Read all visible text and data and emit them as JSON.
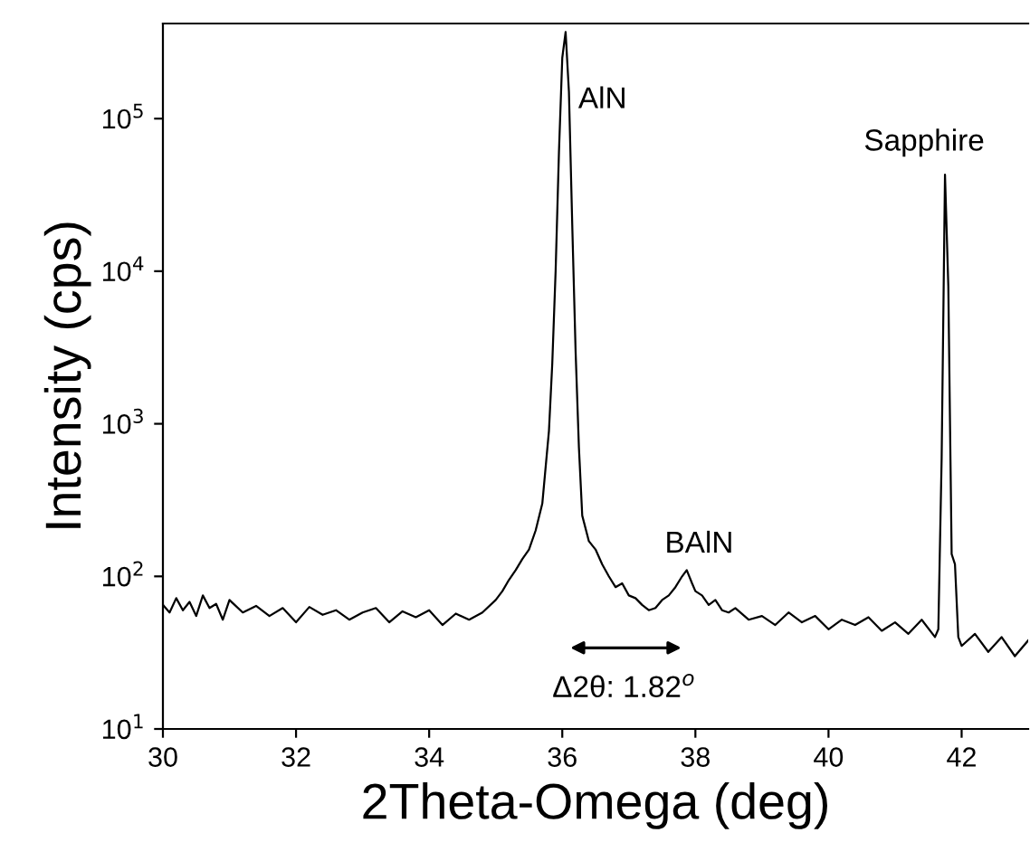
{
  "chart_data": {
    "type": "line",
    "xlabel": "2Theta-Omega (deg)",
    "ylabel": "Intensity (cps)",
    "log": "y",
    "xlim": [
      30,
      43
    ],
    "ylim": [
      10,
      420000
    ],
    "xticks": [
      30,
      32,
      34,
      36,
      38,
      40,
      42
    ],
    "yticks": [
      {
        "value": 10,
        "label": "10$^{1}$"
      },
      {
        "value": 100,
        "label": "10$^{2}$"
      },
      {
        "value": 1000,
        "label": "10$^{3}$"
      },
      {
        "value": 10000,
        "label": "10$^{4}$"
      },
      {
        "value": 100000,
        "label": "10$^{5}$"
      }
    ],
    "grid": false,
    "legend": false,
    "marker": "none",
    "line_style": "solid",
    "series": [
      {
        "color": "#000000",
        "x": [
          30.0,
          30.1,
          30.2,
          30.3,
          30.4,
          30.5,
          30.6,
          30.7,
          30.8,
          30.9,
          31.0,
          31.2,
          31.4,
          31.6,
          31.8,
          32.0,
          32.2,
          32.4,
          32.6,
          32.8,
          33.0,
          33.2,
          33.4,
          33.6,
          33.8,
          34.0,
          34.2,
          34.4,
          34.6,
          34.8,
          35.0,
          35.1,
          35.2,
          35.3,
          35.4,
          35.5,
          35.6,
          35.7,
          35.8,
          35.85,
          35.9,
          35.95,
          36.0,
          36.05,
          36.1,
          36.15,
          36.2,
          36.25,
          36.3,
          36.4,
          36.5,
          36.6,
          36.7,
          36.8,
          36.9,
          37.0,
          37.1,
          37.2,
          37.3,
          37.4,
          37.5,
          37.6,
          37.7,
          37.8,
          37.87,
          37.95,
          38.0,
          38.1,
          38.2,
          38.3,
          38.4,
          38.5,
          38.6,
          38.8,
          39.0,
          39.2,
          39.4,
          39.6,
          39.8,
          40.0,
          40.2,
          40.4,
          40.6,
          40.8,
          41.0,
          41.2,
          41.4,
          41.6,
          41.65,
          41.7,
          41.75,
          41.8,
          41.85,
          41.9,
          41.95,
          42.0,
          42.2,
          42.4,
          42.6,
          42.8,
          43.0
        ],
        "values": [
          65,
          58,
          72,
          60,
          68,
          55,
          75,
          62,
          66,
          52,
          70,
          58,
          64,
          55,
          62,
          50,
          63,
          56,
          60,
          52,
          58,
          62,
          50,
          59,
          54,
          60,
          48,
          57,
          52,
          58,
          70,
          80,
          95,
          110,
          130,
          150,
          200,
          300,
          900,
          2500,
          10000,
          60000,
          250000,
          370000,
          150000,
          20000,
          3000,
          700,
          250,
          170,
          150,
          120,
          100,
          85,
          90,
          75,
          72,
          65,
          60,
          62,
          70,
          75,
          85,
          100,
          110,
          90,
          80,
          75,
          65,
          70,
          60,
          58,
          62,
          52,
          55,
          48,
          58,
          50,
          55,
          45,
          52,
          48,
          54,
          44,
          50,
          42,
          52,
          40,
          45,
          600,
          43000,
          8000,
          140,
          120,
          40,
          35,
          42,
          32,
          40,
          30,
          38
        ]
      }
    ],
    "annotations": [
      "AlN",
      "BAlN",
      "Sapphire",
      "Δ2θ: 1.82$^{o}$"
    ]
  }
}
